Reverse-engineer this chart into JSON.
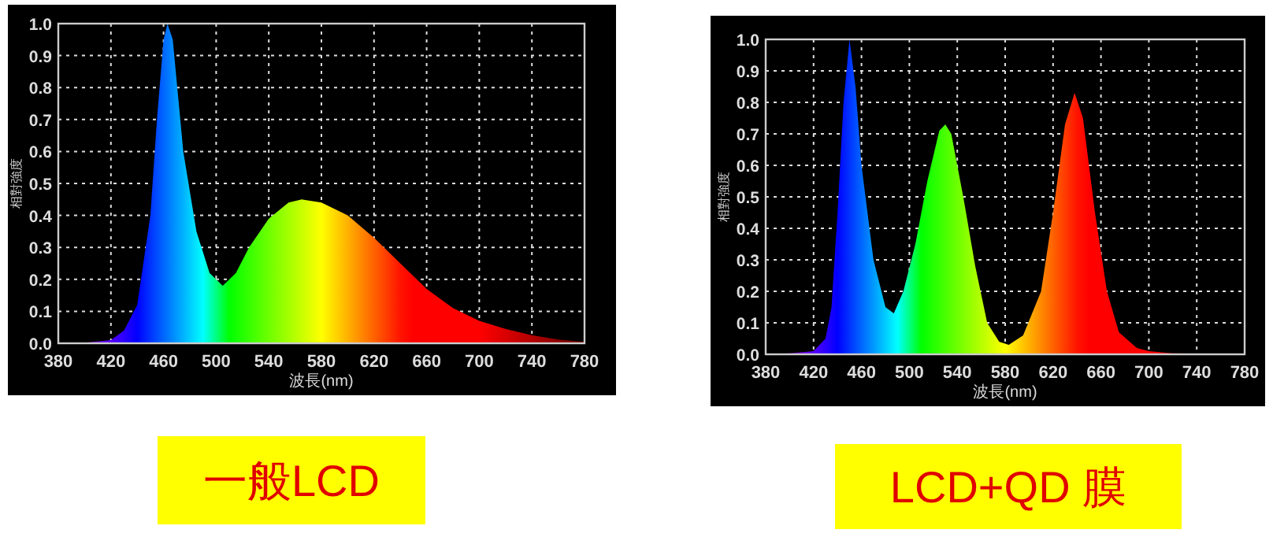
{
  "chart_data": [
    {
      "type": "area",
      "title": "一般LCD",
      "xlabel": "波長(nm)",
      "ylabel": "相對強度",
      "grid": true,
      "xlim": [
        380,
        780
      ],
      "xticks": [
        380,
        420,
        460,
        500,
        540,
        580,
        620,
        660,
        700,
        740,
        780
      ],
      "ylim": [
        0,
        1
      ],
      "yticks": [
        {
          "value": 0,
          "label": "0.0"
        },
        {
          "value": 0.1,
          "label": "0.1"
        },
        {
          "value": 0.2,
          "label": "0.2"
        },
        {
          "value": 0.3,
          "label": "0.3"
        },
        {
          "value": 0.4,
          "label": "0.4"
        },
        {
          "value": 0.5,
          "label": "0.5"
        },
        {
          "value": 0.6,
          "label": "0.6"
        },
        {
          "value": 0.7,
          "label": "0.7"
        },
        {
          "value": 0.8,
          "label": "0.8"
        },
        {
          "value": 0.9,
          "label": "0.9"
        },
        {
          "value": 1,
          "label": "1.0"
        }
      ],
      "x": [
        380,
        400,
        420,
        430,
        440,
        450,
        455,
        460,
        463,
        467,
        475,
        485,
        495,
        505,
        515,
        525,
        540,
        555,
        565,
        580,
        600,
        620,
        640,
        660,
        680,
        700,
        720,
        740,
        760,
        780
      ],
      "values": [
        0,
        0.002,
        0.01,
        0.04,
        0.12,
        0.4,
        0.7,
        0.95,
        1.0,
        0.95,
        0.6,
        0.35,
        0.22,
        0.18,
        0.22,
        0.3,
        0.39,
        0.44,
        0.45,
        0.44,
        0.4,
        0.33,
        0.25,
        0.17,
        0.11,
        0.07,
        0.045,
        0.025,
        0.012,
        0.005
      ]
    },
    {
      "type": "area",
      "title": "LCD+QD 膜",
      "xlabel": "波長(nm)",
      "ylabel": "相對強度",
      "grid": true,
      "xlim": [
        380,
        780
      ],
      "xticks": [
        380,
        420,
        460,
        500,
        540,
        580,
        620,
        660,
        700,
        740,
        780
      ],
      "ylim": [
        0,
        1
      ],
      "yticks": [
        {
          "value": 0,
          "label": "0.0"
        },
        {
          "value": 0.1,
          "label": "0.1"
        },
        {
          "value": 0.2,
          "label": "0.2"
        },
        {
          "value": 0.3,
          "label": "0.3"
        },
        {
          "value": 0.4,
          "label": "0.4"
        },
        {
          "value": 0.5,
          "label": "0.5"
        },
        {
          "value": 0.6,
          "label": "0.6"
        },
        {
          "value": 0.7,
          "label": "0.7"
        },
        {
          "value": 0.8,
          "label": "0.8"
        },
        {
          "value": 0.9,
          "label": "0.9"
        },
        {
          "value": 1,
          "label": "1.0"
        }
      ],
      "x": [
        380,
        400,
        420,
        430,
        435,
        440,
        445,
        450,
        455,
        460,
        470,
        480,
        487,
        495,
        505,
        515,
        525,
        530,
        535,
        545,
        555,
        565,
        575,
        583,
        595,
        610,
        620,
        630,
        638,
        645,
        655,
        665,
        675,
        690,
        700,
        720,
        780
      ],
      "values": [
        0,
        0.003,
        0.01,
        0.05,
        0.15,
        0.45,
        0.8,
        1.0,
        0.85,
        0.6,
        0.3,
        0.15,
        0.13,
        0.2,
        0.35,
        0.55,
        0.71,
        0.73,
        0.7,
        0.5,
        0.28,
        0.1,
        0.04,
        0.03,
        0.06,
        0.2,
        0.45,
        0.73,
        0.83,
        0.75,
        0.45,
        0.2,
        0.07,
        0.02,
        0.01,
        0.003,
        0
      ]
    }
  ]
}
